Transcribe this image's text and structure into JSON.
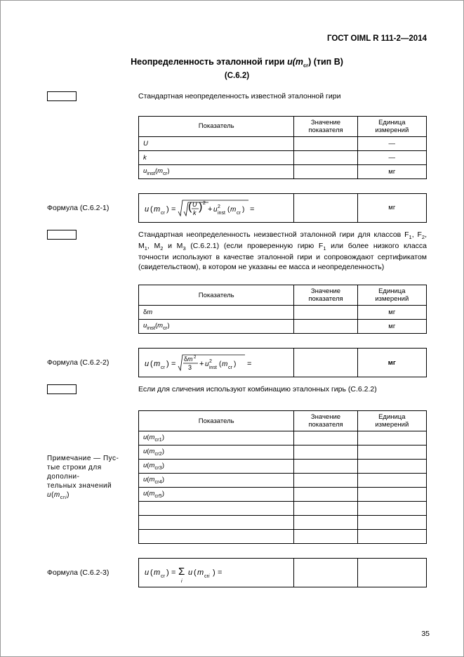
{
  "header": "ГОСТ OIML R 111-2—2014",
  "title_prefix": "Неопределенность эталонной гири ",
  "title_var": "u(m",
  "title_sub": "cr",
  "title_suffix": ") (тип В)",
  "subtitle": "(C.6.2)",
  "section1": {
    "text": "Стандартная неопределенность известной эталонной гири",
    "table_headers": {
      "p": "Показатель",
      "v": "Значение показателя",
      "u": "Единица измерений"
    },
    "rows": [
      {
        "label_html": "<span class='ital'>U</span>",
        "unit": "—"
      },
      {
        "label_html": "<span class='ital'>k</span>",
        "unit": "—"
      },
      {
        "label_html": "<span class='ital'>u</span><span class='sub'>inst</span>(<span class='ital'>m</span><span class='sub'>cr</span>)",
        "unit": "мг"
      }
    ],
    "formula_label": "Формула (C.6.2-1)",
    "formula_unit": "мг"
  },
  "section2": {
    "text_html": "Стандартная неопределенность неизвестной эталонной гири для классов F<span class='sub'>1</span>, F<span class='sub'>2</span>, M<span class='sub'>1</span>, M<span class='sub'>2</span> и M<span class='sub'>3</span> (C.6.2.1) (если проверенную гирю F<span class='sub'>1</span> или более низкого класса точности используют в качестве эталонной гири и сопровождают сертификатом (свидетельством), в котором не указаны ее масса и неопределенность)",
    "table_headers": {
      "p": "Показатель",
      "v": "Значение показателя",
      "u": "Единица измерений"
    },
    "rows": [
      {
        "label_html": "δ<span class='ital'>m</span>",
        "unit": "мг"
      },
      {
        "label_html": "<span class='ital'>u</span><span class='sub'>inst</span>(<span class='ital'>m</span><span class='sub'>cr</span>)",
        "unit": "мг"
      }
    ],
    "formula_label": "Формула (C.6.2-2)",
    "formula_unit": "мг"
  },
  "section3": {
    "text": "Если для сличения используют комбинацию эталонных гирь (C.6.2.2)",
    "table_headers": {
      "p": "Показатель",
      "v": "Значение показателя",
      "u": "Единица измерений"
    },
    "rows": [
      {
        "label_html": "<span class='ital'>u</span>(<span class='ital'>m</span><span class='sub'>cr1</span>)",
        "unit": ""
      },
      {
        "label_html": "<span class='ital'>u</span>(<span class='ital'>m</span><span class='sub'>cr2</span>)",
        "unit": ""
      },
      {
        "label_html": "<span class='ital'>u</span>(<span class='ital'>m</span><span class='sub'>cr3</span>)",
        "unit": ""
      },
      {
        "label_html": "<span class='ital'>u</span>(<span class='ital'>m</span><span class='sub'>cr4</span>)",
        "unit": ""
      },
      {
        "label_html": "<span class='ital'>u</span>(<span class='ital'>m</span><span class='sub'>cr5</span>)",
        "unit": ""
      },
      {
        "label_html": "",
        "unit": ""
      },
      {
        "label_html": "",
        "unit": ""
      },
      {
        "label_html": "",
        "unit": ""
      }
    ],
    "note_html": "Примечание — Пус-<br>тые строки для дополни-<br>тельных значений <span class='ital'>u</span>(<span class='ital'>m</span><span class='sub'>cr<span class='ital'>i</span></span>)",
    "formula_label": "Формула (C.6.2-3)"
  },
  "pagenum": "35"
}
